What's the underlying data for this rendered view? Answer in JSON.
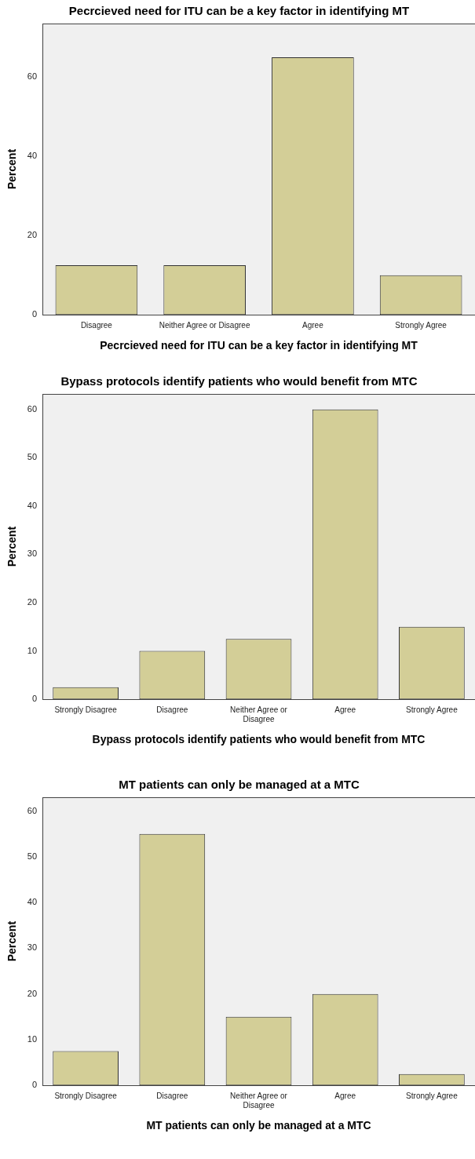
{
  "chart_data": [
    {
      "type": "bar",
      "title": "Pecrcieved need for ITU can be a key factor in identifying MT",
      "xlabel": "Pecrcieved need for ITU can be a key factor in identifying MT",
      "ylabel": "Percent",
      "categories": [
        "Disagree",
        "Neither Agree or Disagree",
        "Agree",
        "Strongly Agree"
      ],
      "values": [
        12.5,
        12.5,
        65,
        10
      ],
      "color": "#d3ce97",
      "ylim": [
        0,
        73.5
      ],
      "yticks": [
        0,
        20,
        40,
        60
      ]
    },
    {
      "type": "bar",
      "title": "Bypass protocols identify patients who would benefit from MTC",
      "xlabel": "Bypass protocols identify patients who would benefit from MTC",
      "ylabel": "Percent",
      "categories": [
        "Strongly Disagree",
        "Disagree",
        "Neither Agree or Disagree",
        "Agree",
        "Strongly Agree"
      ],
      "values": [
        2.5,
        10,
        12.5,
        60,
        15
      ],
      "color": "#d3ce97",
      "ylim": [
        0,
        63.2
      ],
      "yticks": [
        0,
        10,
        20,
        30,
        40,
        50,
        60
      ]
    },
    {
      "type": "bar",
      "title": "MT patients can only be managed at a MTC",
      "xlabel": "MT patients can only be managed at a MTC",
      "ylabel": "Percent",
      "categories": [
        "Strongly Disagree",
        "Disagree",
        "Neither Agree or Disagree",
        "Agree",
        "Strongly Agree"
      ],
      "values": [
        7.5,
        55,
        15,
        20,
        2.5
      ],
      "color": "#d3ce97",
      "ylim": [
        0,
        63
      ],
      "yticks": [
        0,
        10,
        20,
        30,
        40,
        50,
        60
      ]
    }
  ]
}
